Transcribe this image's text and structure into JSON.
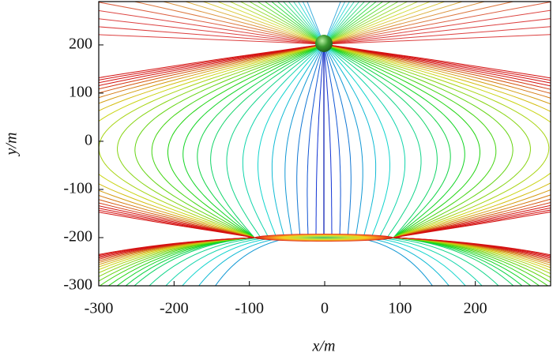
{
  "chart_data": {
    "type": "contour",
    "x_label": "x/m",
    "y_label": "y/m",
    "xlim": [
      -300,
      300
    ],
    "ylim": [
      -300,
      290
    ],
    "xticks": [
      -300,
      -200,
      -100,
      0,
      100,
      200
    ],
    "yticks": [
      -300,
      -200,
      -100,
      0,
      100,
      200
    ]
  }
}
